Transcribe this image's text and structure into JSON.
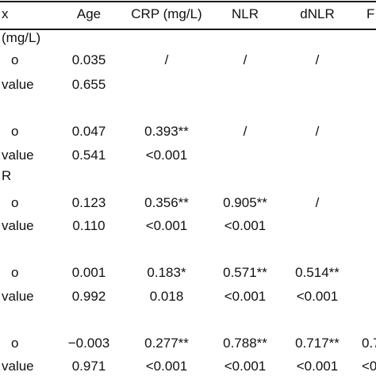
{
  "table": {
    "header": {
      "row_label": "x",
      "columns": [
        "Age",
        "CRP (mg/L)",
        "NLR",
        "dNLR",
        "F"
      ]
    },
    "rows": [
      {
        "label": "(mg/L)",
        "values": [
          "",
          "",
          "",
          "",
          ""
        ]
      },
      {
        "label": "o",
        "values": [
          "0.035",
          "/",
          "/",
          "/",
          ""
        ]
      },
      {
        "label": "value",
        "values": [
          "0.655",
          "",
          "",
          "",
          ""
        ]
      },
      {
        "label": "o",
        "values": [
          "0.047",
          "0.393**",
          "/",
          "/",
          ""
        ]
      },
      {
        "label": "value",
        "values": [
          "0.541",
          "<0.001",
          "",
          "",
          ""
        ]
      },
      {
        "label": "R",
        "values": [
          "",
          "",
          "",
          "",
          ""
        ]
      },
      {
        "label": "o",
        "values": [
          "0.123",
          "0.356**",
          "0.905**",
          "/",
          ""
        ]
      },
      {
        "label": "value",
        "values": [
          "0.110",
          "<0.001",
          "<0.001",
          "",
          ""
        ]
      },
      {
        "label": "o",
        "values": [
          "0.001",
          "0.183*",
          "0.571**",
          "0.514**",
          ""
        ]
      },
      {
        "label": "value",
        "values": [
          "0.992",
          "0.018",
          "<0.001",
          "<0.001",
          ""
        ]
      },
      {
        "label": "o",
        "values": [
          "−0.003",
          "0.277**",
          "0.788**",
          "0.717**",
          "0.7"
        ]
      },
      {
        "label": "value",
        "values": [
          "0.971",
          "<0.001",
          "<0.001",
          "<0.001",
          "<0."
        ]
      }
    ]
  }
}
